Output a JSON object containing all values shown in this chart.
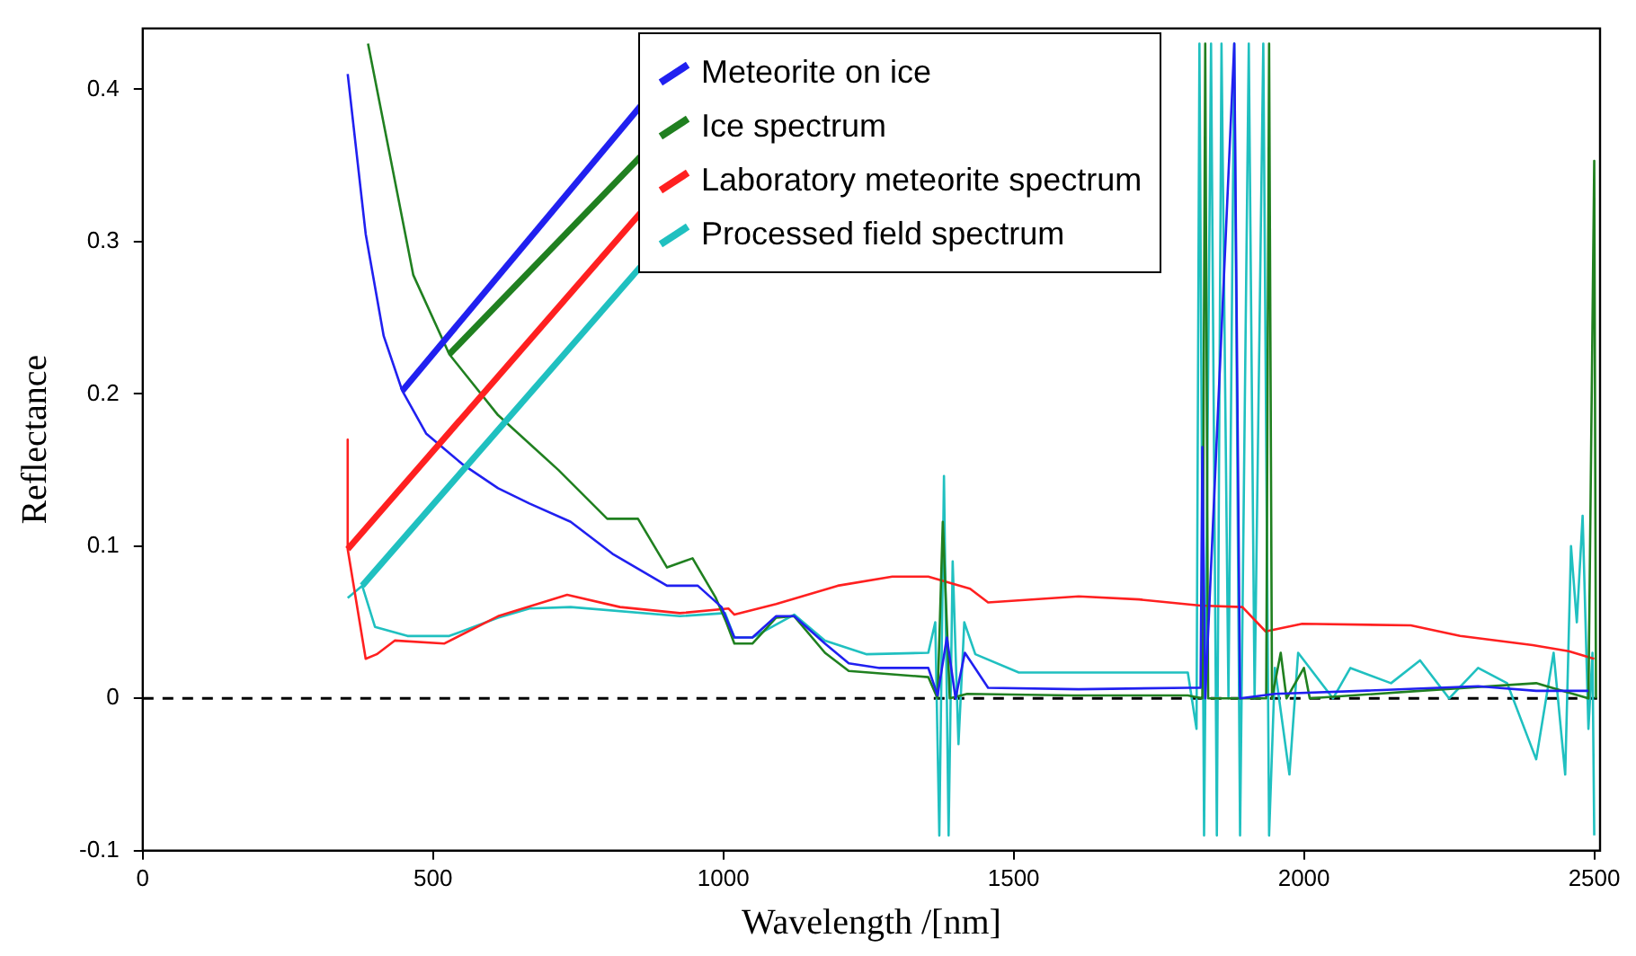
{
  "chart_data": {
    "type": "line",
    "xlabel": "Wavelength /[nm]",
    "ylabel": "Reflectance",
    "xlim": [
      0,
      2510
    ],
    "xticks": [
      0,
      500,
      1000,
      1500,
      2000,
      2500
    ],
    "ylim": [
      -0.1,
      0.44
    ],
    "yticks": [
      -0.1,
      0,
      0.1,
      0.2,
      0.3,
      0.4
    ],
    "grid": false,
    "legend": "top",
    "marker": "none",
    "line_style": "solid",
    "ref_lines": [
      {
        "axis": "y",
        "value": 0,
        "color": "#000000",
        "line_style": "dashed"
      }
    ],
    "series": [
      {
        "name": "Meteorite on ice",
        "color": "#2020f0",
        "x": [
          353,
          384,
          415,
          447,
          488,
          550,
          612,
          666,
          737,
          809,
          903,
          956,
          997,
          1019,
          1050,
          1091,
          1122,
          1175,
          1216,
          1269,
          1353,
          1369,
          1385,
          1400,
          1416,
          1456,
          1612,
          1800,
          1822,
          1825,
          1830,
          1880,
          1890,
          1950,
          2100,
          2300,
          2400,
          2490
        ],
        "values": [
          0.41,
          0.305,
          0.238,
          0.202,
          0.174,
          0.154,
          0.138,
          0.128,
          0.116,
          0.095,
          0.074,
          0.074,
          0.06,
          0.04,
          0.04,
          0.054,
          0.054,
          0.036,
          0.023,
          0.02,
          0.02,
          0.002,
          0.04,
          0.0,
          0.03,
          0.007,
          0.006,
          0.007,
          0.007,
          0.165,
          0.0,
          0.43,
          0.0,
          0.003,
          0.005,
          0.008,
          0.005,
          0.005
        ]
      },
      {
        "name": "Ice spectrum",
        "color": "#208020",
        "x": [
          388,
          425,
          466,
          528,
          612,
          716,
          800,
          853,
          903,
          947,
          987,
          1005,
          1019,
          1050,
          1091,
          1122,
          1175,
          1216,
          1353,
          1369,
          1378,
          1390,
          1420,
          1600,
          1800,
          1825,
          1830,
          1835,
          1935,
          1940,
          1945,
          1960,
          1970,
          2000,
          2010,
          2200,
          2400,
          2490,
          2500,
          2503
        ],
        "values": [
          0.43,
          0.358,
          0.278,
          0.226,
          0.186,
          0.15,
          0.118,
          0.118,
          0.086,
          0.092,
          0.066,
          0.05,
          0.036,
          0.036,
          0.053,
          0.054,
          0.03,
          0.018,
          0.014,
          0.0,
          0.116,
          0.0,
          0.003,
          0.002,
          0.002,
          0.0,
          0.43,
          0.0,
          0.0,
          0.43,
          0.0,
          0.03,
          0.0,
          0.02,
          0.0,
          0.005,
          0.01,
          0.0,
          0.353,
          0.0
        ]
      },
      {
        "name": "Laboratory meteorite spectrum",
        "color": "#ff2020",
        "x": [
          353,
          353,
          384,
          403,
          434,
          519,
          612,
          731,
          822,
          925,
          1009,
          1019,
          1091,
          1197,
          1291,
          1353,
          1425,
          1456,
          1612,
          1716,
          1822,
          1894,
          1934,
          1997,
          2184,
          2269,
          2394,
          2456,
          2500
        ],
        "values": [
          0.17,
          0.098,
          0.026,
          0.029,
          0.038,
          0.036,
          0.054,
          0.068,
          0.06,
          0.056,
          0.059,
          0.055,
          0.062,
          0.074,
          0.08,
          0.08,
          0.072,
          0.063,
          0.067,
          0.065,
          0.061,
          0.06,
          0.044,
          0.049,
          0.048,
          0.041,
          0.035,
          0.031,
          0.026
        ]
      },
      {
        "name": "Processed field spectrum",
        "color": "#20c0c0",
        "x": [
          353,
          378,
          400,
          456,
          528,
          612,
          666,
          737,
          925,
          1003,
          1019,
          1050,
          1122,
          1175,
          1247,
          1353,
          1365,
          1372,
          1380,
          1388,
          1395,
          1405,
          1415,
          1434,
          1509,
          1716,
          1800,
          1815,
          1820,
          1828,
          1840,
          1850,
          1858,
          1870,
          1880,
          1890,
          1905,
          1915,
          1930,
          1940,
          1950,
          1975,
          1990,
          2050,
          2080,
          2150,
          2200,
          2250,
          2300,
          2350,
          2400,
          2430,
          2450,
          2460,
          2470,
          2480,
          2490,
          2497,
          2500
        ],
        "values": [
          0.066,
          0.074,
          0.047,
          0.041,
          0.041,
          0.053,
          0.059,
          0.06,
          0.054,
          0.056,
          0.04,
          0.04,
          0.055,
          0.038,
          0.029,
          0.03,
          0.05,
          -0.09,
          0.146,
          -0.09,
          0.09,
          -0.03,
          0.05,
          0.029,
          0.017,
          0.017,
          0.017,
          -0.02,
          0.43,
          -0.09,
          0.43,
          -0.09,
          0.43,
          0.0,
          0.43,
          -0.09,
          0.43,
          0.0,
          0.43,
          -0.09,
          0.02,
          -0.05,
          0.03,
          0.0,
          0.02,
          0.01,
          0.025,
          0.0,
          0.02,
          0.01,
          -0.04,
          0.03,
          -0.05,
          0.1,
          0.05,
          0.12,
          -0.02,
          0.03,
          -0.09
        ]
      }
    ]
  }
}
